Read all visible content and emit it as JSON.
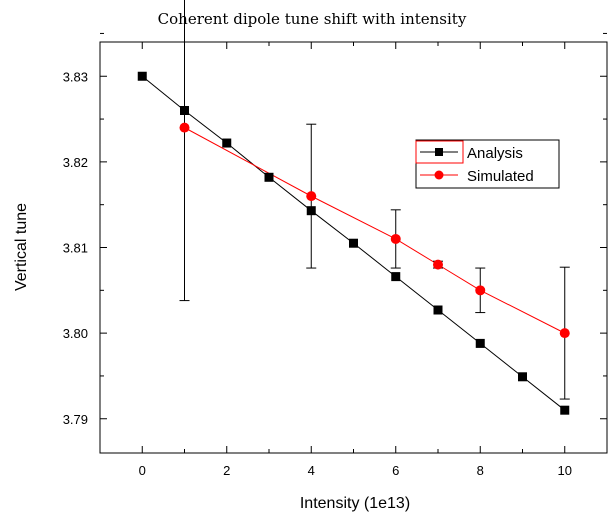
{
  "chart_data": {
    "type": "line",
    "title": "Coherent dipole tune shift with intensity",
    "xlabel": "Intensity (1e13)",
    "ylabel": "Vertical tune",
    "xlim": [
      -1,
      11
    ],
    "ylim": [
      3.786,
      3.834
    ],
    "xticks": [
      "0",
      "2",
      "4",
      "6",
      "8",
      "10"
    ],
    "yticks": [
      "3.79",
      "3.80",
      "3.81",
      "3.82",
      "3.83"
    ],
    "legend_position": "right",
    "grid": false,
    "series": [
      {
        "name": "Analysis",
        "color": "#000000",
        "marker": "square",
        "x": [
          0,
          1,
          2,
          3,
          4,
          5,
          6,
          7,
          8,
          9,
          10
        ],
        "y": [
          3.83,
          3.826,
          3.8222,
          3.8182,
          3.8143,
          3.8105,
          3.8066,
          3.8027,
          3.7988,
          3.7949,
          3.791
        ]
      },
      {
        "name": "Simulated",
        "color": "#ff0000",
        "marker": "circle",
        "x": [
          1,
          4,
          6,
          7,
          8,
          10
        ],
        "y": [
          3.824,
          3.816,
          3.811,
          3.808,
          3.805,
          3.8
        ],
        "error": [
          3.8038,
          3.8076,
          3.8076,
          3.8076,
          3.8076,
          3.8077
        ]
      }
    ]
  }
}
